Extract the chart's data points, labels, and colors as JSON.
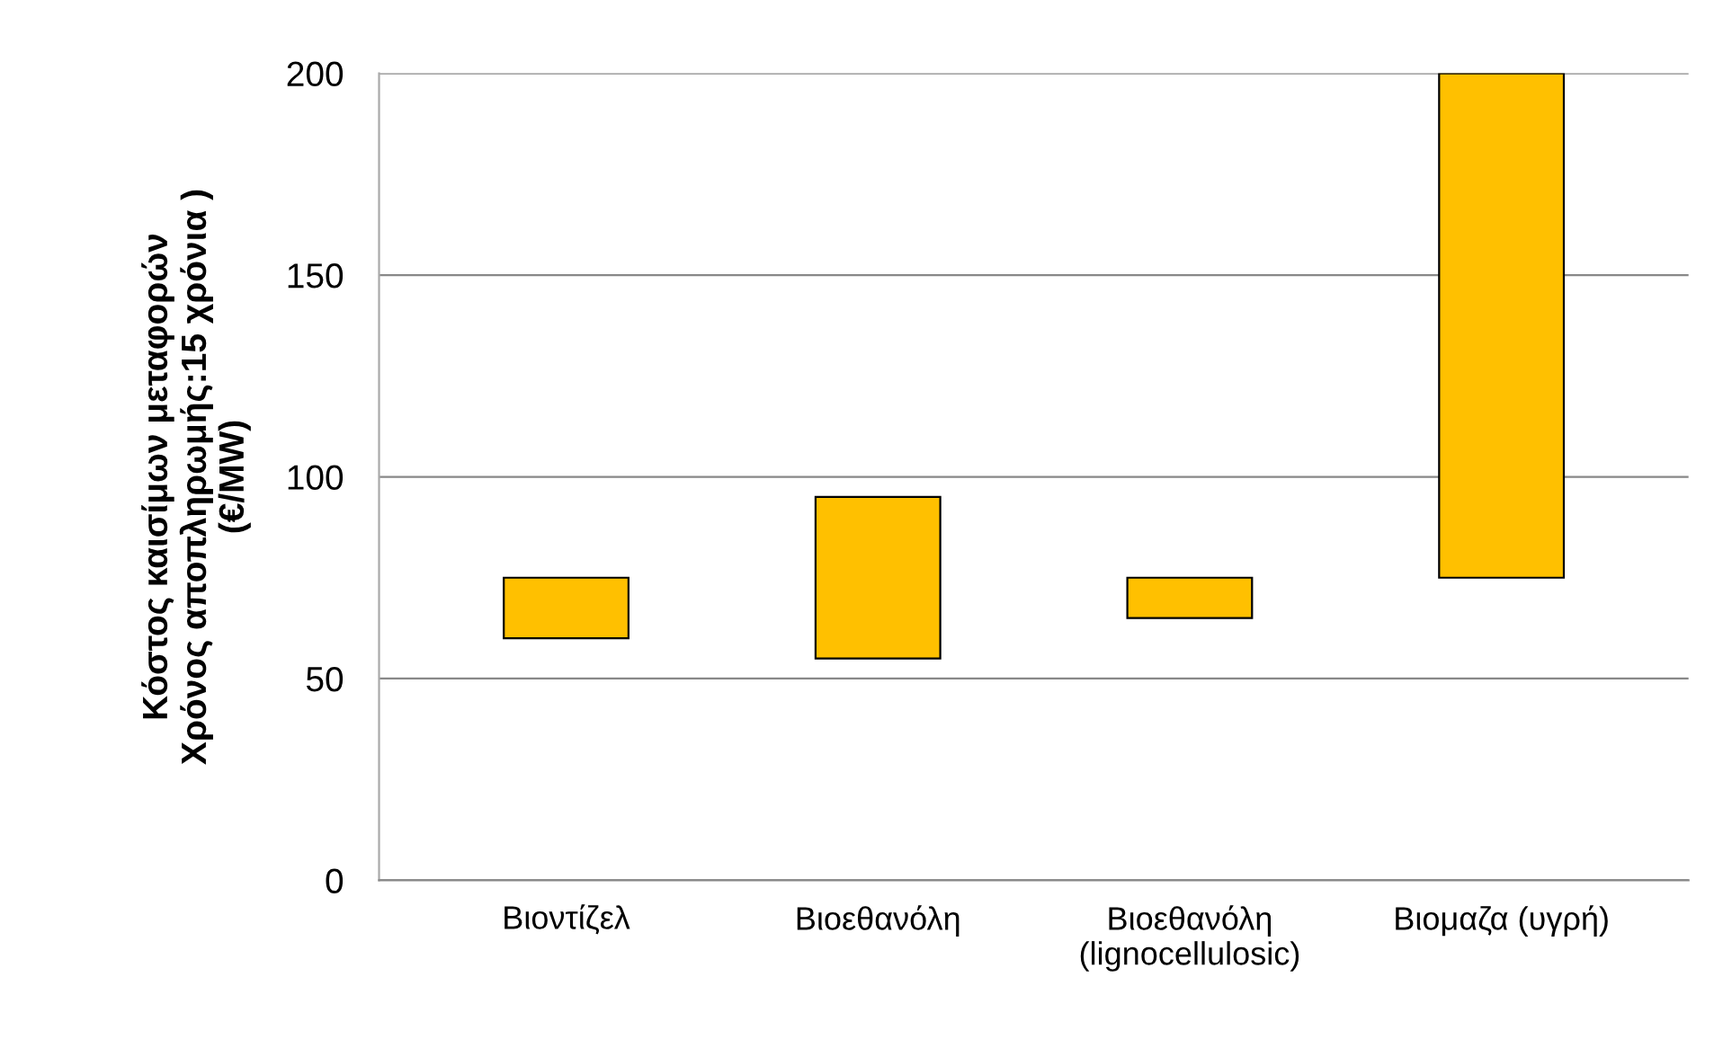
{
  "chart_data": {
    "type": "bar",
    "ylabel": "Κόστος καισίμων μεταφορών\nΧρόνος αποπληρωμής:15 χρόνια )\n(€/MW)",
    "categories": [
      "Βιοντίζελ",
      "Βιοεθανόλη",
      "Βιοεθανόλη\n(lignocellulosic)",
      "Βιομαζα (υγρή)"
    ],
    "base": [
      60,
      55,
      65,
      75
    ],
    "values": [
      15,
      40,
      10,
      125
    ],
    "color": "#ffc000",
    "ylim": [
      0,
      200
    ],
    "yticks": [
      0,
      50,
      100,
      150,
      200
    ],
    "grid": "y"
  }
}
